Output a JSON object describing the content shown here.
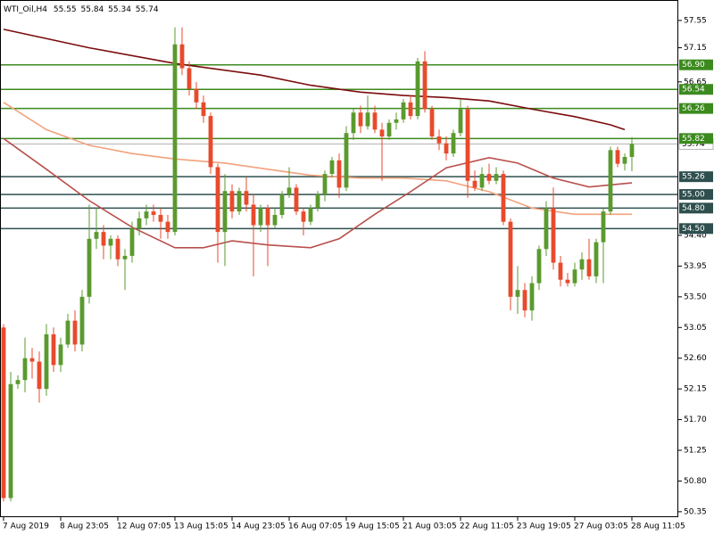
{
  "chart_data": {
    "type": "candlestick",
    "title": "WTI_Oil,H4",
    "categories": [
      "7 Aug 2019",
      null,
      null,
      null,
      null,
      null,
      null,
      null,
      "8 Aug 23:05",
      null,
      null,
      null,
      null,
      null,
      null,
      null,
      "12 Aug 07:05",
      null,
      null,
      null,
      null,
      null,
      null,
      null,
      "13 Aug 15:05",
      null,
      null,
      null,
      null,
      null,
      null,
      null,
      "14 Aug 23:05",
      null,
      null,
      null,
      null,
      null,
      null,
      null,
      "16 Aug 07:05",
      null,
      null,
      null,
      null,
      null,
      null,
      null,
      "19 Aug 15:05",
      null,
      null,
      null,
      null,
      null,
      null,
      null,
      "21 Aug 03:05",
      null,
      null,
      null,
      null,
      null,
      null,
      null,
      "22 Aug 11:05",
      null,
      null,
      null,
      null,
      null,
      null,
      null,
      "23 Aug 19:05",
      null,
      null,
      null,
      null,
      null,
      null,
      null,
      "27 Aug 03:05",
      null,
      null,
      null,
      null,
      null,
      null,
      null,
      "28 Aug 11:05"
    ],
    "open": [
      53.05,
      50.55,
      52.22,
      52.28,
      52.6,
      52.55,
      52.15,
      52.95,
      52.5,
      52.8,
      53.15,
      52.8,
      53.5,
      54.35,
      54.45,
      54.25,
      54.35,
      54.05,
      54.1,
      54.5,
      54.65,
      54.75,
      54.7,
      54.6,
      54.45,
      57.2,
      56.85,
      56.55,
      56.35,
      56.15,
      55.4,
      54.45,
      55.05,
      54.75,
      55.05,
      54.85,
      54.55,
      54.8,
      54.55,
      54.7,
      55.0,
      55.1,
      54.75,
      54.6,
      54.8,
      55.0,
      55.3,
      55.5,
      55.1,
      55.9,
      56.2,
      56.0,
      56.2,
      55.95,
      55.85,
      56.05,
      56.1,
      56.35,
      56.15,
      56.95,
      56.25,
      55.85,
      55.75,
      55.6,
      55.9,
      56.25,
      55.2,
      55.1,
      55.3,
      55.2,
      55.3,
      54.6,
      53.5,
      53.6,
      53.3,
      53.7,
      54.2,
      54.8,
      54.0,
      53.75,
      53.7,
      53.9,
      54.05,
      53.8,
      54.3,
      54.75,
      55.65,
      55.45,
      55.55
    ],
    "high": [
      53.1,
      52.4,
      52.35,
      52.9,
      52.75,
      52.7,
      53.1,
      53.05,
      52.9,
      53.25,
      53.3,
      53.6,
      54.85,
      54.8,
      54.55,
      54.4,
      54.4,
      54.2,
      54.6,
      54.75,
      54.85,
      54.85,
      54.8,
      54.7,
      57.45,
      57.45,
      56.95,
      56.65,
      56.45,
      56.2,
      55.45,
      55.3,
      55.15,
      55.1,
      55.25,
      55.0,
      54.85,
      54.85,
      54.8,
      55.05,
      55.4,
      55.15,
      54.8,
      54.85,
      55.05,
      55.35,
      55.55,
      55.6,
      56.0,
      56.25,
      56.3,
      56.45,
      56.3,
      56.05,
      56.1,
      56.2,
      56.4,
      56.45,
      57.0,
      57.1,
      56.3,
      55.95,
      55.85,
      55.95,
      56.4,
      56.3,
      55.35,
      55.4,
      55.45,
      55.4,
      55.35,
      54.65,
      53.95,
      53.7,
      53.8,
      54.25,
      54.9,
      55.1,
      54.1,
      53.85,
      54.0,
      54.15,
      54.35,
      54.35,
      54.8,
      55.7,
      55.7,
      55.6,
      55.84
    ],
    "low": [
      50.5,
      50.5,
      52.15,
      52.1,
      52.3,
      51.95,
      52.05,
      52.4,
      52.4,
      52.75,
      52.7,
      52.7,
      53.4,
      54.2,
      54.05,
      54.05,
      53.95,
      53.6,
      54.0,
      54.4,
      54.55,
      54.6,
      54.35,
      54.35,
      54.4,
      56.75,
      56.45,
      56.25,
      56.05,
      55.3,
      54.0,
      53.95,
      54.65,
      54.7,
      54.75,
      53.8,
      54.45,
      53.95,
      54.5,
      54.65,
      54.95,
      54.7,
      54.4,
      54.55,
      54.75,
      54.9,
      55.25,
      54.95,
      55.05,
      55.8,
      55.9,
      55.95,
      55.9,
      55.2,
      55.8,
      55.95,
      56.05,
      56.1,
      56.1,
      56.2,
      55.8,
      55.65,
      55.5,
      55.55,
      55.85,
      54.95,
      55.05,
      55.05,
      55.15,
      55.15,
      54.55,
      53.3,
      53.25,
      53.2,
      53.15,
      53.6,
      54.1,
      53.9,
      53.65,
      53.65,
      53.65,
      53.75,
      53.75,
      53.7,
      53.7,
      54.7,
      55.4,
      55.35,
      55.34
    ],
    "close": [
      50.55,
      52.22,
      52.28,
      52.6,
      52.55,
      52.15,
      52.95,
      52.5,
      52.8,
      53.15,
      52.8,
      53.5,
      54.35,
      54.45,
      54.25,
      54.35,
      54.05,
      54.1,
      54.5,
      54.65,
      54.75,
      54.7,
      54.6,
      54.45,
      57.2,
      56.85,
      56.55,
      56.35,
      56.15,
      55.4,
      54.45,
      55.05,
      54.75,
      55.05,
      54.85,
      54.55,
      54.8,
      54.55,
      54.7,
      55.0,
      55.1,
      54.75,
      54.6,
      54.8,
      55.0,
      55.3,
      55.5,
      55.1,
      55.9,
      56.2,
      56.0,
      56.2,
      55.95,
      55.85,
      56.05,
      56.1,
      56.35,
      56.15,
      56.95,
      56.25,
      55.85,
      55.75,
      55.6,
      55.9,
      56.25,
      55.2,
      55.1,
      55.3,
      55.2,
      55.3,
      54.6,
      53.5,
      53.6,
      53.3,
      53.7,
      54.2,
      54.8,
      54.0,
      53.75,
      53.7,
      53.9,
      54.05,
      53.8,
      54.3,
      54.75,
      55.65,
      55.45,
      55.55,
      55.74
    ],
    "up_color": "#5a9a2e",
    "down_color": "#e84a2c",
    "moving_averages": [
      {
        "color": "#7a0c0c",
        "x": [
          0,
          12,
          24,
          36,
          43,
          50,
          56,
          62,
          68,
          74,
          80,
          85,
          87
        ],
        "values": [
          57.42,
          57.15,
          56.92,
          56.75,
          56.6,
          56.5,
          56.45,
          56.42,
          56.37,
          56.25,
          56.14,
          56.02,
          55.95
        ]
      },
      {
        "color": "#f2a27c",
        "x": [
          0,
          6,
          12,
          18,
          24,
          31,
          37,
          43,
          50,
          56,
          62,
          68,
          74,
          80,
          88
        ],
        "values": [
          56.35,
          55.95,
          55.72,
          55.6,
          55.52,
          55.46,
          55.37,
          55.28,
          55.24,
          55.24,
          55.2,
          55.04,
          54.8,
          54.71,
          54.71
        ]
      },
      {
        "color": "#b8504c",
        "x": [
          0,
          6,
          12,
          18,
          24,
          28,
          32,
          37,
          43,
          47,
          52,
          57,
          62,
          68,
          72,
          77,
          82,
          88
        ],
        "values": [
          55.82,
          55.37,
          54.91,
          54.52,
          54.22,
          54.22,
          54.32,
          54.26,
          54.22,
          54.35,
          54.71,
          55.04,
          55.39,
          55.54,
          55.46,
          55.24,
          55.11,
          55.17
        ]
      }
    ],
    "levels": [
      {
        "value": 56.9,
        "label": "56.90",
        "color": "#3c8a1e"
      },
      {
        "value": 56.54,
        "label": "56.54",
        "color": "#3c8a1e"
      },
      {
        "value": 56.26,
        "label": "56.26",
        "color": "#3c8a1e"
      },
      {
        "value": 55.82,
        "label": "55.82",
        "color": "#3c8a1e"
      },
      {
        "value": 55.26,
        "label": "55.26",
        "color": "#2f4f4f"
      },
      {
        "value": 55.0,
        "label": "55.00",
        "color": "#2f4f4f"
      },
      {
        "value": 54.8,
        "label": "54.80",
        "color": "#2f4f4f"
      },
      {
        "value": 54.5,
        "label": "54.50",
        "color": "#2f4f4f"
      }
    ],
    "last_price": {
      "value": 55.74,
      "label": "55.74",
      "color": "#b4b4b4"
    },
    "xlim": [
      -0.5,
      94.5
    ],
    "ylim": [
      50.27,
      57.85
    ],
    "yticks": [
      57.55,
      57.15,
      56.65,
      {
        "value": 54.4,
        "label": "54.40"
      },
      53.95,
      {
        "value": 53.5,
        "label": "53.50"
      },
      53.05,
      {
        "value": 52.6,
        "label": "52.60"
      },
      52.15,
      {
        "value": 51.7,
        "label": "51.70"
      },
      51.25,
      {
        "value": 50.8,
        "label": "50.80"
      },
      50.35
    ]
  }
}
